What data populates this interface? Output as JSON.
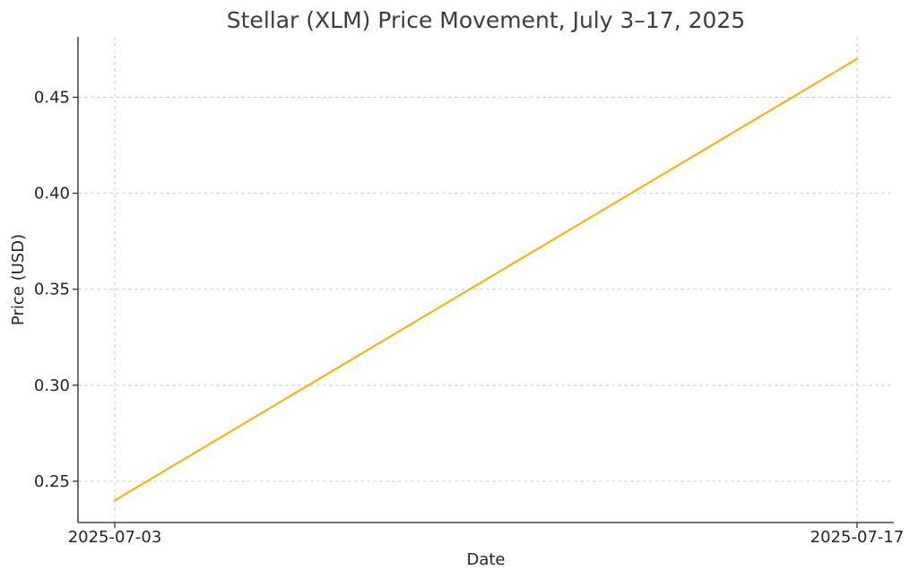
{
  "chart_data": {
    "type": "line",
    "title": "Stellar (XLM) Price Movement, July 3–17, 2025",
    "xlabel": "Date",
    "ylabel": "Price (USD)",
    "x": [
      "2025-07-03",
      "2025-07-17"
    ],
    "series": [
      {
        "values": [
          0.24,
          0.47
        ],
        "color": "#f5b314"
      }
    ],
    "x_ticks": [
      "2025-07-03",
      "2025-07-17"
    ],
    "y_ticks": [
      "0.25",
      "0.30",
      "0.35",
      "0.40",
      "0.45"
    ],
    "ylim": [
      0.2285,
      0.4815
    ],
    "grid": true,
    "legend": "none"
  }
}
